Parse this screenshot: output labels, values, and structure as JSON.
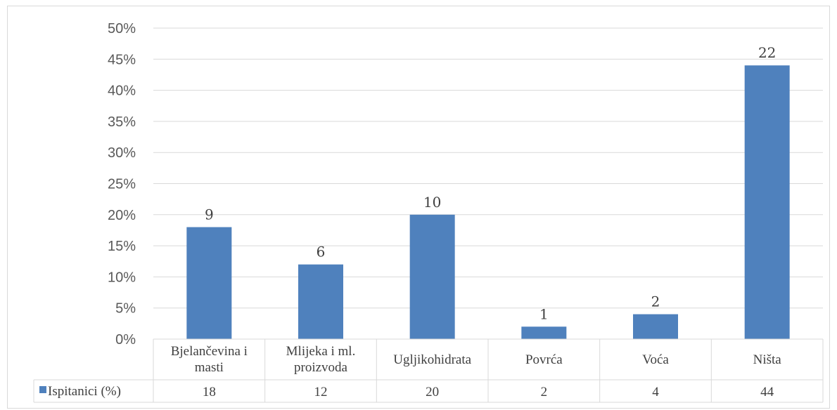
{
  "chart_data": {
    "type": "bar",
    "categories": [
      [
        "Bjelančevina i",
        "masti"
      ],
      [
        "Mlijeka i ml.",
        "proizvoda"
      ],
      [
        "Ugljikohidrata"
      ],
      [
        "Povrća"
      ],
      [
        "Voća"
      ],
      [
        "Ništa"
      ]
    ],
    "series": [
      {
        "name": "Ispitanici (%)",
        "values": [
          18,
          12,
          20,
          2,
          4,
          44
        ],
        "data_labels": [
          "9",
          "6",
          "10",
          "1",
          "2",
          "22"
        ],
        "color": "#4f81bd"
      }
    ],
    "table_values": [
      "18",
      "12",
      "20",
      "2",
      "4",
      "44"
    ],
    "ylim": [
      0,
      50
    ],
    "y_ticks": [
      "0%",
      "5%",
      "10%",
      "15%",
      "20%",
      "25%",
      "30%",
      "35%",
      "40%",
      "45%",
      "50%"
    ],
    "grid": true,
    "legend": "data-table"
  }
}
